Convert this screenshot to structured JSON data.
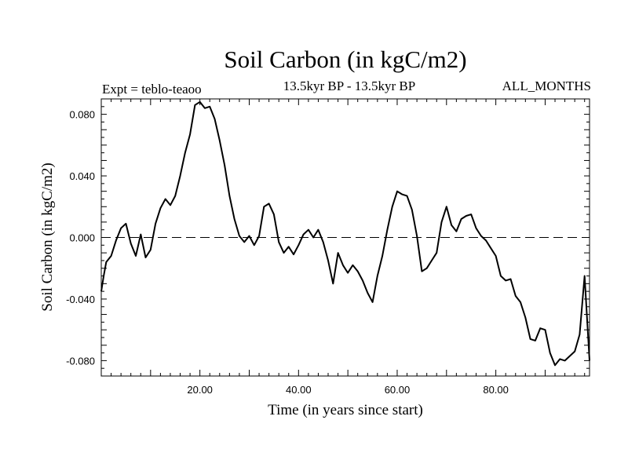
{
  "header": {
    "title": "Soil Carbon (in kgC/m2)",
    "expt": "Expt = teblo-teaoo",
    "subtitle": "13.5kyr BP - 13.5kyr BP",
    "months": "ALL_MONTHS"
  },
  "chart_data": {
    "type": "line",
    "title": "Soil Carbon (in kgC/m2)",
    "xlabel": "Time (in years since start)",
    "ylabel": "Soil Carbon (in kgC/m2)",
    "xlim": [
      0,
      99
    ],
    "ylim": [
      -0.09,
      0.09
    ],
    "xticks": [
      20,
      40,
      60,
      80
    ],
    "xtick_labels": [
      "20.00",
      "40.00",
      "60.00",
      "80.00"
    ],
    "yticks": [
      0.08,
      0.04,
      0.0,
      -0.04,
      -0.08
    ],
    "ytick_labels": [
      "0.080",
      "0.040",
      "0.000",
      "-0.040",
      "-0.080"
    ],
    "reference_line": 0.0,
    "series": [
      {
        "name": "Soil Carbon",
        "x": [
          0,
          0.5,
          1,
          2,
          3,
          4,
          5,
          6,
          7,
          8,
          9,
          10,
          11,
          12,
          13,
          14,
          15,
          16,
          17,
          18,
          19,
          20,
          21,
          22,
          23,
          24,
          25,
          26,
          27,
          28,
          29,
          30,
          31,
          32,
          33,
          34,
          35,
          36,
          37,
          38,
          39,
          40,
          41,
          42,
          43,
          44,
          45,
          46,
          47,
          48,
          49,
          50,
          51,
          52,
          53,
          54,
          55,
          56,
          57,
          58,
          59,
          60,
          61,
          62,
          63,
          64,
          65,
          66,
          67,
          68,
          69,
          70,
          71,
          72,
          73,
          74,
          75,
          76,
          77,
          78,
          79,
          80,
          81,
          82,
          83,
          84,
          85,
          86,
          87,
          88,
          89,
          90,
          91,
          92,
          93,
          94,
          95,
          96,
          97,
          98,
          99
        ],
        "values": [
          -0.035,
          -0.025,
          -0.016,
          -0.012,
          -0.002,
          0.006,
          0.009,
          -0.004,
          -0.012,
          0.002,
          -0.013,
          -0.008,
          0.009,
          0.019,
          0.025,
          0.021,
          0.027,
          0.04,
          0.055,
          0.067,
          0.086,
          0.088,
          0.084,
          0.085,
          0.077,
          0.063,
          0.047,
          0.027,
          0.012,
          0.001,
          -0.003,
          0.001,
          -0.005,
          0.001,
          0.02,
          0.022,
          0.015,
          -0.003,
          -0.01,
          -0.006,
          -0.011,
          -0.005,
          0.002,
          0.005,
          0.0,
          0.005,
          -0.003,
          -0.015,
          -0.03,
          -0.01,
          -0.018,
          -0.023,
          -0.018,
          -0.022,
          -0.028,
          -0.036,
          -0.042,
          -0.025,
          -0.012,
          0.005,
          0.02,
          0.03,
          0.028,
          0.027,
          0.018,
          0.001,
          -0.022,
          -0.02,
          -0.015,
          -0.01,
          0.01,
          0.02,
          0.008,
          0.004,
          0.012,
          0.014,
          0.015,
          0.006,
          0.001,
          -0.002,
          -0.007,
          -0.012,
          -0.025,
          -0.028,
          -0.027,
          -0.038,
          -0.042,
          -0.052,
          -0.066,
          -0.067,
          -0.059,
          -0.06,
          -0.075,
          -0.083,
          -0.079,
          -0.08,
          -0.077,
          -0.074,
          -0.063,
          -0.025,
          -0.08
        ]
      }
    ]
  }
}
